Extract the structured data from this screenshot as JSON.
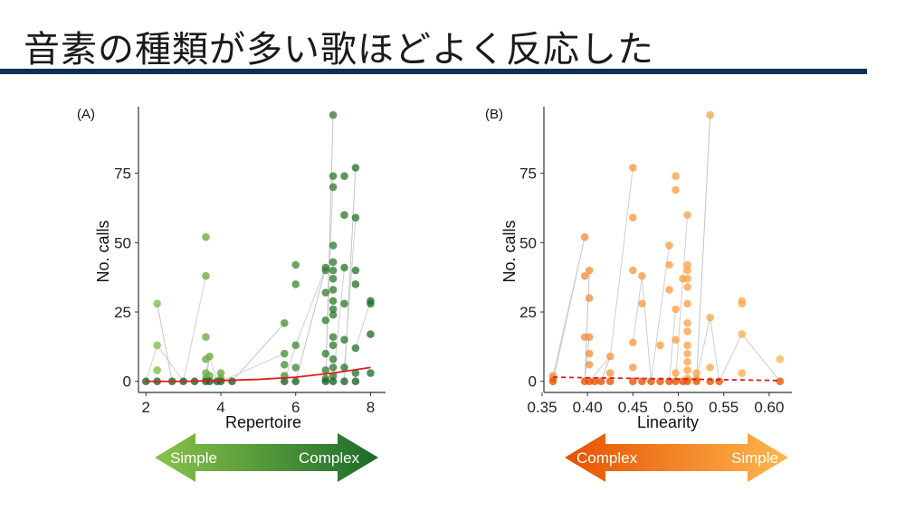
{
  "slide": {
    "title": "音素の種類が多い歌ほどよく反応した"
  },
  "colors": {
    "title_rule": "#12304f",
    "green_light": "#8bc34a",
    "green_dark": "#1b6b2a",
    "orange_dark": "#e65100",
    "orange_light": "#ffb74d",
    "fit_line": "#e31a1c"
  },
  "arrows": {
    "left": {
      "left_text": "Simple",
      "right_text": "Complex"
    },
    "right": {
      "left_text": "Complex",
      "right_text": "Simple"
    }
  },
  "chart_data": [
    {
      "type": "scatter",
      "panel_label": "(A)",
      "xlabel": "Repertoire",
      "ylabel": "No. calls",
      "xlim": [
        1.8,
        8.4
      ],
      "ylim": [
        -4,
        99
      ],
      "xticks": [
        2,
        4,
        6,
        8
      ],
      "yticks": [
        0,
        25,
        50,
        75
      ],
      "grid": false,
      "points": [
        [
          2.0,
          0
        ],
        [
          2.3,
          0
        ],
        [
          2.3,
          4
        ],
        [
          2.3,
          13
        ],
        [
          2.3,
          28
        ],
        [
          2.7,
          0
        ],
        [
          3.0,
          0
        ],
        [
          3.3,
          0
        ],
        [
          3.6,
          52
        ],
        [
          3.6,
          38
        ],
        [
          3.6,
          16
        ],
        [
          3.6,
          8
        ],
        [
          3.6,
          3
        ],
        [
          3.6,
          1
        ],
        [
          3.6,
          0
        ],
        [
          3.7,
          9
        ],
        [
          3.7,
          2
        ],
        [
          3.7,
          0
        ],
        [
          3.9,
          0
        ],
        [
          4.0,
          3
        ],
        [
          4.0,
          1
        ],
        [
          4.0,
          0
        ],
        [
          4.3,
          0
        ],
        [
          5.7,
          21
        ],
        [
          5.7,
          10
        ],
        [
          5.7,
          6
        ],
        [
          5.7,
          2
        ],
        [
          5.7,
          0
        ],
        [
          6.0,
          42
        ],
        [
          6.0,
          35
        ],
        [
          6.0,
          13
        ],
        [
          6.0,
          5
        ],
        [
          6.0,
          0
        ],
        [
          6.8,
          41
        ],
        [
          6.8,
          40
        ],
        [
          6.8,
          32
        ],
        [
          6.8,
          22
        ],
        [
          6.8,
          10
        ],
        [
          6.8,
          4
        ],
        [
          6.8,
          1
        ],
        [
          6.8,
          0
        ],
        [
          7.0,
          96
        ],
        [
          7.0,
          74
        ],
        [
          7.0,
          70
        ],
        [
          7.0,
          49
        ],
        [
          7.0,
          43
        ],
        [
          7.0,
          40
        ],
        [
          7.0,
          37
        ],
        [
          7.0,
          33
        ],
        [
          7.0,
          29
        ],
        [
          7.0,
          26
        ],
        [
          7.0,
          24
        ],
        [
          7.0,
          16
        ],
        [
          7.0,
          13
        ],
        [
          7.0,
          8
        ],
        [
          7.0,
          5
        ],
        [
          7.0,
          2
        ],
        [
          7.0,
          0
        ],
        [
          7.3,
          74
        ],
        [
          7.3,
          60
        ],
        [
          7.3,
          41
        ],
        [
          7.3,
          28
        ],
        [
          7.3,
          15
        ],
        [
          7.3,
          5
        ],
        [
          7.3,
          0
        ],
        [
          7.6,
          77
        ],
        [
          7.6,
          59
        ],
        [
          7.6,
          40
        ],
        [
          7.6,
          35
        ],
        [
          7.6,
          12
        ],
        [
          7.6,
          3
        ],
        [
          7.6,
          0
        ],
        [
          8.0,
          29
        ],
        [
          8.0,
          28
        ],
        [
          8.0,
          17
        ],
        [
          8.0,
          3
        ]
      ],
      "trend": {
        "style": "solid",
        "x": [
          2,
          3,
          4,
          5,
          6,
          7,
          8
        ],
        "y": [
          0,
          0,
          0.3,
          0.7,
          1.5,
          3,
          5
        ]
      }
    },
    {
      "type": "scatter",
      "panel_label": "(B)",
      "xlabel": "Linearity",
      "ylabel": "No. calls",
      "xlim": [
        0.352,
        0.625
      ],
      "ylim": [
        -4,
        99
      ],
      "xticks": [
        0.35,
        0.4,
        0.45,
        0.5,
        0.55,
        0.6
      ],
      "xticklabels": [
        "0.35",
        "0.40",
        "0.45",
        "0.50",
        "0.55",
        "0.60"
      ],
      "yticks": [
        0,
        25,
        50,
        75
      ],
      "grid": false,
      "points": [
        [
          0.362,
          2
        ],
        [
          0.362,
          1
        ],
        [
          0.362,
          0
        ],
        [
          0.397,
          52
        ],
        [
          0.397,
          38
        ],
        [
          0.397,
          16
        ],
        [
          0.397,
          0
        ],
        [
          0.402,
          40
        ],
        [
          0.402,
          30
        ],
        [
          0.402,
          16
        ],
        [
          0.402,
          10
        ],
        [
          0.402,
          6
        ],
        [
          0.402,
          0
        ],
        [
          0.408,
          0
        ],
        [
          0.415,
          0
        ],
        [
          0.425,
          9
        ],
        [
          0.425,
          3
        ],
        [
          0.425,
          0
        ],
        [
          0.45,
          77
        ],
        [
          0.45,
          59
        ],
        [
          0.45,
          40
        ],
        [
          0.45,
          14
        ],
        [
          0.45,
          5
        ],
        [
          0.45,
          0
        ],
        [
          0.46,
          38
        ],
        [
          0.46,
          28
        ],
        [
          0.46,
          0
        ],
        [
          0.47,
          0
        ],
        [
          0.48,
          13
        ],
        [
          0.48,
          0
        ],
        [
          0.49,
          49
        ],
        [
          0.49,
          42
        ],
        [
          0.49,
          33
        ],
        [
          0.49,
          0
        ],
        [
          0.497,
          74
        ],
        [
          0.497,
          69
        ],
        [
          0.497,
          26
        ],
        [
          0.497,
          15
        ],
        [
          0.497,
          3
        ],
        [
          0.497,
          0
        ],
        [
          0.505,
          37
        ],
        [
          0.505,
          0
        ],
        [
          0.51,
          60
        ],
        [
          0.51,
          42
        ],
        [
          0.51,
          40
        ],
        [
          0.51,
          37
        ],
        [
          0.51,
          34
        ],
        [
          0.51,
          28
        ],
        [
          0.51,
          21
        ],
        [
          0.51,
          18
        ],
        [
          0.51,
          13
        ],
        [
          0.51,
          10
        ],
        [
          0.51,
          7
        ],
        [
          0.51,
          4
        ],
        [
          0.51,
          1
        ],
        [
          0.51,
          0
        ],
        [
          0.52,
          3
        ],
        [
          0.52,
          1
        ],
        [
          0.52,
          0
        ],
        [
          0.535,
          96
        ],
        [
          0.535,
          23
        ],
        [
          0.535,
          5
        ],
        [
          0.535,
          0
        ],
        [
          0.545,
          0
        ],
        [
          0.57,
          29
        ],
        [
          0.57,
          28
        ],
        [
          0.57,
          17
        ],
        [
          0.57,
          3
        ],
        [
          0.612,
          8
        ],
        [
          0.612,
          0
        ]
      ],
      "trend": {
        "style": "dashed",
        "x": [
          0.362,
          0.61
        ],
        "y": [
          1.5,
          0.3
        ]
      }
    }
  ]
}
